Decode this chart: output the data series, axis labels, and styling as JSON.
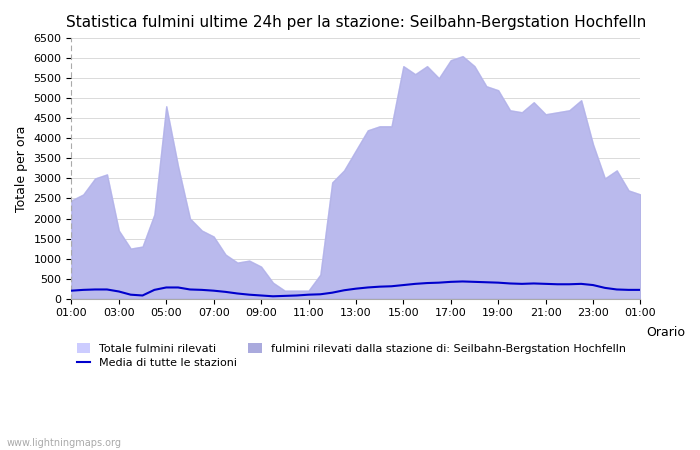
{
  "title": "Statistica fulmini ultime 24h per la stazione: Seilbahn-Bergstation Hochfelln",
  "xlabel": "Orario",
  "ylabel": "Totale per ora",
  "xlim": [
    0,
    24
  ],
  "ylim": [
    0,
    6500
  ],
  "yticks": [
    0,
    500,
    1000,
    1500,
    2000,
    2500,
    3000,
    3500,
    4000,
    4500,
    5000,
    5500,
    6000,
    6500
  ],
  "xtick_labels": [
    "01:00",
    "03:00",
    "05:00",
    "07:00",
    "09:00",
    "11:00",
    "13:00",
    "15:00",
    "17:00",
    "19:00",
    "21:00",
    "23:00",
    "01:00"
  ],
  "xtick_positions": [
    0,
    2,
    4,
    6,
    8,
    10,
    12,
    14,
    16,
    18,
    20,
    22,
    24
  ],
  "background_color": "#ffffff",
  "fill_total_color": "#ccccff",
  "fill_station_color": "#aaaadd",
  "line_color": "#0000cc",
  "watermark": "www.lightningmaps.org",
  "legend_label_total": "Totale fulmini rilevati",
  "legend_label_media": "Media di tutte le stazioni",
  "legend_label_station": "fulmini rilevati dalla stazione di: Seilbahn-Bergstation Hochfelln",
  "total_x": [
    0,
    0.5,
    1,
    1.5,
    2,
    2.5,
    3,
    3.5,
    4,
    4.5,
    5,
    5.5,
    6,
    6.5,
    7,
    7.5,
    8,
    8.5,
    9,
    9.5,
    10,
    10.5,
    11,
    11.5,
    12,
    12.5,
    13,
    13.5,
    14,
    14.5,
    15,
    15.5,
    16,
    16.5,
    17,
    17.5,
    18,
    18.5,
    19,
    19.5,
    20,
    20.5,
    21,
    21.5,
    22,
    22.5,
    23,
    23.5,
    24
  ],
  "total_y": [
    2450,
    2600,
    3000,
    3100,
    1700,
    1250,
    1300,
    2100,
    4800,
    3300,
    2000,
    1700,
    1550,
    1100,
    900,
    950,
    800,
    400,
    200,
    200,
    200,
    600,
    2900,
    3200,
    3700,
    4200,
    4300,
    4300,
    5800,
    5600,
    5800,
    5500,
    5950,
    6050,
    5800,
    5300,
    5200,
    4700,
    4650,
    4900,
    4600,
    4650,
    4700,
    4950,
    3850,
    3000,
    3200,
    2700,
    2600
  ],
  "station_y": [
    2450,
    2600,
    3000,
    3100,
    1700,
    1250,
    1300,
    2100,
    4800,
    3300,
    2000,
    1700,
    1550,
    1100,
    900,
    950,
    800,
    400,
    200,
    200,
    200,
    600,
    2900,
    3200,
    3700,
    4200,
    4300,
    4300,
    5800,
    5600,
    5800,
    5500,
    5950,
    6050,
    5800,
    5300,
    5200,
    4700,
    4650,
    4900,
    4600,
    4650,
    4700,
    4950,
    3850,
    3000,
    3200,
    2700,
    2600
  ],
  "media_x": [
    0,
    0.5,
    1,
    1.5,
    2,
    2.5,
    3,
    3.5,
    4,
    4.5,
    5,
    5.5,
    6,
    6.5,
    7,
    7.5,
    8,
    8.5,
    9,
    9.5,
    10,
    10.5,
    11,
    11.5,
    12,
    12.5,
    13,
    13.5,
    14,
    14.5,
    15,
    15.5,
    16,
    16.5,
    17,
    17.5,
    18,
    18.5,
    19,
    19.5,
    20,
    20.5,
    21,
    21.5,
    22,
    22.5,
    23,
    23.5,
    24
  ],
  "media_y": [
    200,
    220,
    230,
    230,
    180,
    100,
    80,
    220,
    280,
    280,
    230,
    220,
    200,
    170,
    130,
    100,
    80,
    60,
    70,
    80,
    100,
    110,
    150,
    210,
    250,
    280,
    300,
    310,
    340,
    370,
    390,
    400,
    420,
    430,
    420,
    410,
    400,
    380,
    370,
    380,
    370,
    360,
    360,
    370,
    340,
    270,
    230,
    220,
    220
  ]
}
